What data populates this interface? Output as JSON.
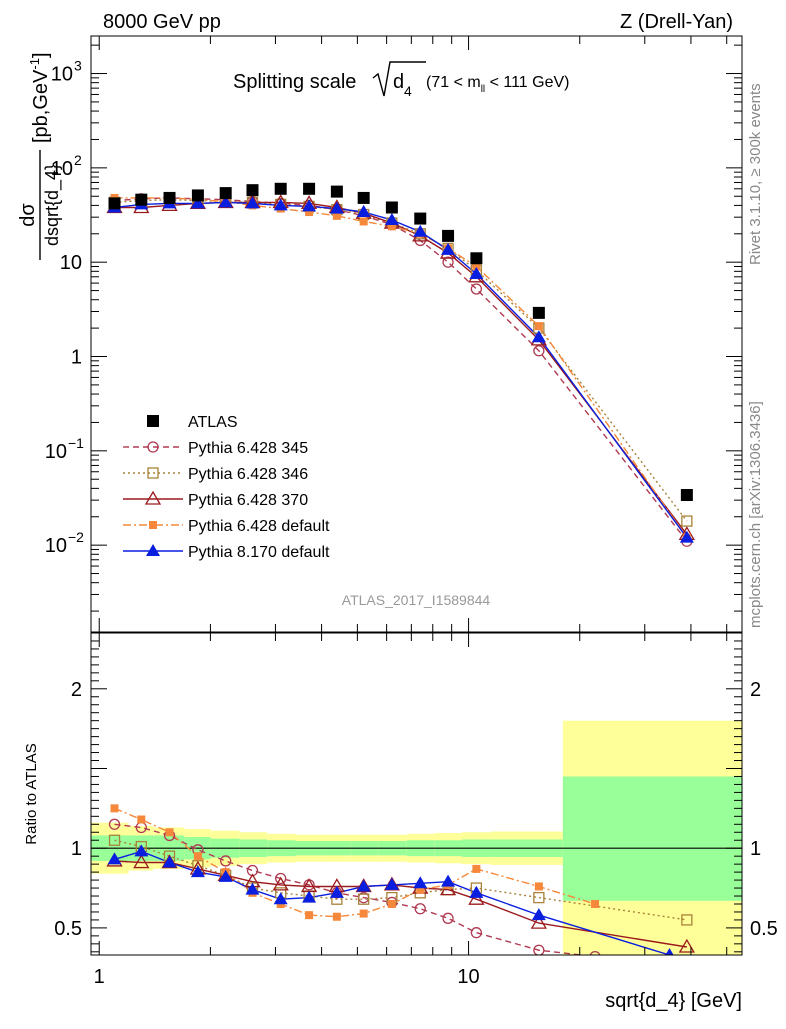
{
  "header": {
    "left": "8000 GeV pp",
    "right": "Z (Drell-Yan)"
  },
  "side_text": {
    "rivet": "Rivet 3.1.10, ≥ 300k events",
    "mcplots": "mcplots.cern.ch [arXiv:1306.3436]"
  },
  "title": {
    "main": "Splitting scale",
    "var": "d",
    "sub": "4",
    "range_prefix": "(71 < m",
    "range_sub": "ll",
    "range_suffix": " < 111 GeV)"
  },
  "watermark": "ATLAS_2017_I1589844",
  "ylabel_top": {
    "num": "dσ",
    "den": "dsqrt{d_4}",
    "unit": "[pb,GeV",
    "unit_sup": "-1",
    "unit_end": "]"
  },
  "ylabel_bottom": "Ratio to ATLAS",
  "xlabel": "sqrt{d_4} [GeV]",
  "colors": {
    "ATLAS": "#000000",
    "py345": "#b03a52",
    "py346": "#a8823a",
    "py370": "#9b1a1e",
    "pydef": "#f5883a",
    "py8": "#0a1ee0",
    "band_inner": "#99ff99",
    "band_outer": "#ffff99"
  },
  "chart_data": [
    {
      "type": "scatter",
      "panel": "main",
      "x_scale": "log",
      "y_scale": "log",
      "xlim": [
        0.95,
        55
      ],
      "ylim": [
        0.0012,
        2500
      ],
      "x_ticks": [
        1,
        10
      ],
      "y_ticks": [
        {
          "v": 1000,
          "label": "10",
          "sup": "3"
        },
        {
          "v": 100,
          "label": "10",
          "sup": "2"
        },
        {
          "v": 10,
          "label": "10",
          "sup": ""
        },
        {
          "v": 1,
          "label": "1",
          "sup": ""
        },
        {
          "v": 0.1,
          "label": "10",
          "sup": "−1"
        },
        {
          "v": 0.01,
          "label": "10",
          "sup": "−2"
        }
      ],
      "legend_position": "lower-left",
      "series": [
        {
          "name": "ATLAS",
          "key": "ATLAS",
          "marker": "square",
          "line": "none",
          "x": [
            1.1,
            1.3,
            1.55,
            1.85,
            2.2,
            2.6,
            3.1,
            3.7,
            4.4,
            5.2,
            6.2,
            7.4,
            8.8,
            10.5,
            15.5,
            39
          ],
          "y": [
            42,
            46,
            48,
            51,
            54,
            58,
            60,
            60,
            56,
            48,
            38,
            29,
            19,
            11,
            2.9,
            0.034
          ]
        },
        {
          "name": "Pythia 6.428 345",
          "key": "py345",
          "marker": "circle-open",
          "line": "dashed",
          "x": [
            1.1,
            1.3,
            1.55,
            1.85,
            2.2,
            2.6,
            3.1,
            3.7,
            4.4,
            5.2,
            6.2,
            7.4,
            8.8,
            10.5,
            15.5,
            39
          ],
          "y": [
            45,
            47,
            48,
            47,
            46,
            44,
            42,
            40,
            36,
            31,
            25,
            17,
            10,
            5.2,
            1.15,
            0.011
          ]
        },
        {
          "name": "Pythia 6.428 346",
          "key": "py346",
          "marker": "square-open",
          "line": "dotted",
          "x": [
            1.1,
            1.3,
            1.55,
            1.85,
            2.2,
            2.6,
            3.1,
            3.7,
            4.4,
            5.2,
            6.2,
            7.4,
            8.8,
            10.5,
            15.5,
            39
          ],
          "y": [
            43,
            45,
            46,
            45,
            44,
            43,
            41,
            39,
            36,
            32,
            26,
            20,
            14,
            8.2,
            2.0,
            0.018
          ]
        },
        {
          "name": "Pythia 6.428 370",
          "key": "py370",
          "marker": "triangle-open",
          "line": "solid",
          "x": [
            1.1,
            1.3,
            1.55,
            1.85,
            2.2,
            2.6,
            3.1,
            3.7,
            4.4,
            5.2,
            6.2,
            7.4,
            8.8,
            10.5,
            15.5,
            39
          ],
          "y": [
            38,
            38,
            40,
            42,
            43,
            43,
            43,
            42,
            38,
            33,
            26,
            19,
            12.5,
            7.0,
            1.5,
            0.013
          ]
        },
        {
          "name": "Pythia 6.428 default",
          "key": "pydef",
          "marker": "square-filled-small",
          "line": "dashdot",
          "x": [
            1.1,
            1.3,
            1.55,
            1.85,
            2.2,
            2.6,
            3.1,
            3.7,
            4.4,
            5.2,
            6.2,
            7.4,
            8.8,
            10.5,
            15.5,
            39
          ],
          "y": [
            48,
            48,
            48,
            46,
            44,
            40,
            37,
            34,
            31,
            27,
            24,
            20,
            14,
            9.0,
            2.1,
            0.012
          ]
        },
        {
          "name": "Pythia 8.170 default",
          "key": "py8",
          "marker": "triangle-filled",
          "line": "solid",
          "x": [
            1.1,
            1.3,
            1.55,
            1.85,
            2.2,
            2.6,
            3.1,
            3.7,
            4.4,
            5.2,
            6.2,
            7.4,
            8.8,
            10.5,
            15.5,
            39
          ],
          "y": [
            38,
            41,
            42,
            42,
            43,
            42,
            40,
            39,
            37,
            34,
            28,
            21,
            13.5,
            7.5,
            1.6,
            0.012
          ]
        }
      ]
    },
    {
      "type": "line",
      "panel": "ratio",
      "x_scale": "log",
      "y_scale": "linear",
      "xlim": [
        0.95,
        55
      ],
      "ylim": [
        0.33,
        2.35
      ],
      "x_ticks": [
        1,
        10
      ],
      "y_ticks": [
        0.5,
        1,
        2
      ],
      "reference_line": 1,
      "band_x_edges": [
        0.95,
        1.2,
        1.4,
        1.7,
        2.0,
        2.4,
        2.85,
        3.4,
        4.05,
        4.8,
        5.7,
        6.8,
        8.1,
        9.6,
        11.5,
        18,
        55
      ],
      "band_inner": [
        [
          0.92,
          1.08
        ],
        [
          0.92,
          1.08
        ],
        [
          0.92,
          1.08
        ],
        [
          0.93,
          1.07
        ],
        [
          0.94,
          1.06
        ],
        [
          0.945,
          1.055
        ],
        [
          0.95,
          1.05
        ],
        [
          0.955,
          1.045
        ],
        [
          0.955,
          1.045
        ],
        [
          0.955,
          1.045
        ],
        [
          0.955,
          1.045
        ],
        [
          0.95,
          1.05
        ],
        [
          0.95,
          1.05
        ],
        [
          0.945,
          1.055
        ],
        [
          0.945,
          1.055
        ],
        [
          0.67,
          1.45
        ]
      ],
      "band_outer": [
        [
          0.84,
          1.16
        ],
        [
          0.86,
          1.14
        ],
        [
          0.87,
          1.13
        ],
        [
          0.88,
          1.12
        ],
        [
          0.89,
          1.11
        ],
        [
          0.9,
          1.1
        ],
        [
          0.91,
          1.09
        ],
        [
          0.915,
          1.085
        ],
        [
          0.915,
          1.085
        ],
        [
          0.915,
          1.085
        ],
        [
          0.915,
          1.085
        ],
        [
          0.91,
          1.09
        ],
        [
          0.905,
          1.095
        ],
        [
          0.9,
          1.1
        ],
        [
          0.895,
          1.105
        ],
        [
          0.33,
          1.8
        ]
      ],
      "series": [
        {
          "key": "py345",
          "marker": "circle-open",
          "line": "dashed",
          "x": [
            1.1,
            1.3,
            1.55,
            1.85,
            2.2,
            2.6,
            3.1,
            3.7,
            4.4,
            5.2,
            6.2,
            7.4,
            8.8,
            10.5,
            15.5,
            22
          ],
          "y": [
            1.15,
            1.13,
            1.08,
            0.99,
            0.92,
            0.86,
            0.81,
            0.77,
            0.72,
            0.69,
            0.66,
            0.62,
            0.56,
            0.47,
            0.36,
            0.32
          ]
        },
        {
          "key": "py346",
          "marker": "square-open",
          "line": "dotted",
          "x": [
            1.1,
            1.3,
            1.55,
            1.85,
            2.2,
            2.6,
            3.1,
            3.7,
            4.4,
            5.2,
            6.2,
            7.4,
            8.8,
            10.5,
            15.5,
            39
          ],
          "y": [
            1.05,
            1.01,
            0.95,
            0.89,
            0.83,
            0.75,
            0.72,
            0.7,
            0.68,
            0.68,
            0.69,
            0.72,
            0.74,
            0.75,
            0.69,
            0.55
          ]
        },
        {
          "key": "py370",
          "marker": "triangle-open",
          "line": "solid",
          "x": [
            1.1,
            1.3,
            1.55,
            1.85,
            2.2,
            2.6,
            3.1,
            3.7,
            4.4,
            5.2,
            6.2,
            7.4,
            8.8,
            10.5,
            15.5,
            39
          ],
          "y": [
            0.92,
            0.91,
            0.91,
            0.87,
            0.83,
            0.79,
            0.77,
            0.76,
            0.76,
            0.76,
            0.77,
            0.75,
            0.74,
            0.68,
            0.53,
            0.38
          ]
        },
        {
          "key": "pydef",
          "marker": "square-filled-small",
          "line": "dashdot",
          "x": [
            1.1,
            1.3,
            1.55,
            1.85,
            2.2,
            2.6,
            3.1,
            3.7,
            4.4,
            5.2,
            6.2,
            7.4,
            8.8,
            10.5,
            15.5,
            22
          ],
          "y": [
            1.25,
            1.18,
            1.1,
            0.95,
            0.85,
            0.72,
            0.65,
            0.58,
            0.57,
            0.59,
            0.65,
            0.74,
            0.77,
            0.87,
            0.76,
            0.65
          ]
        },
        {
          "key": "py8",
          "marker": "triangle-filled",
          "line": "solid",
          "x": [
            1.1,
            1.3,
            1.55,
            1.85,
            2.2,
            2.6,
            3.1,
            3.7,
            4.4,
            5.2,
            6.2,
            7.4,
            8.8,
            10.5,
            15.5,
            35
          ],
          "y": [
            0.93,
            0.98,
            0.91,
            0.85,
            0.82,
            0.74,
            0.68,
            0.69,
            0.72,
            0.76,
            0.77,
            0.78,
            0.79,
            0.72,
            0.58,
            0.33
          ]
        }
      ]
    }
  ]
}
